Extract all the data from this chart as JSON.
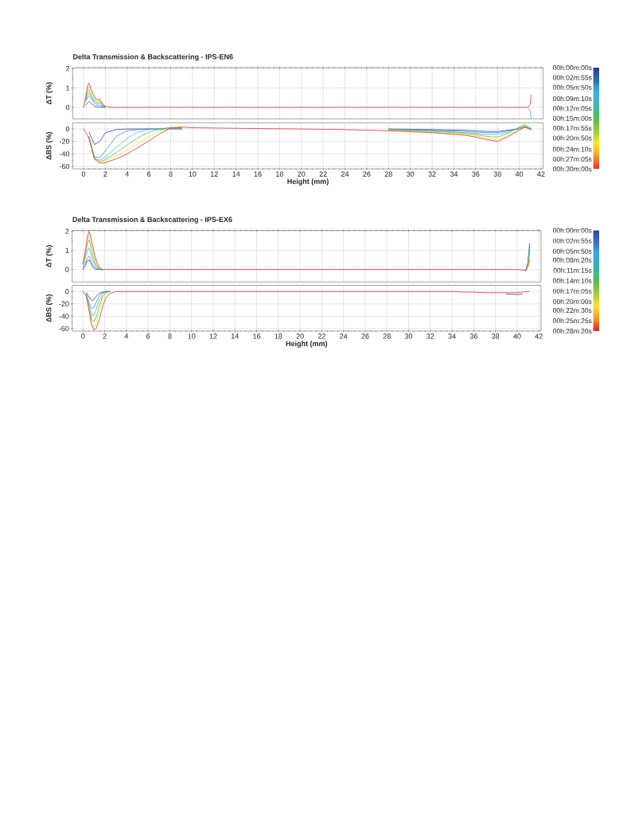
{
  "chart_data": [
    {
      "type": "line",
      "title": "Delta Transmission & Backscattering - IPS-EN6",
      "ylabel": "ΔT (%)",
      "x": [
        0,
        0.2,
        0.4,
        0.5,
        0.7,
        1.0,
        1.3,
        1.5,
        1.7,
        2.0,
        2.5,
        10,
        20,
        30,
        40,
        40.8,
        41.0,
        41.1
      ],
      "series": [
        {
          "color": "#2b3a96",
          "values": [
            null,
            0.1,
            0.25,
            0.3,
            0.2,
            0.06,
            0,
            0,
            0,
            0,
            null,
            null,
            null,
            null,
            null,
            null,
            null,
            null
          ]
        },
        {
          "color": "#2f86cc",
          "values": [
            null,
            0.3,
            0.55,
            0.6,
            0.45,
            0.2,
            0.08,
            0.1,
            0.05,
            0,
            null,
            null,
            null,
            null,
            null,
            null,
            null,
            null
          ]
        },
        {
          "color": "#35b6c8",
          "values": [
            null,
            0.4,
            0.7,
            0.75,
            0.55,
            0.3,
            0.15,
            0.2,
            0.1,
            0.02,
            null,
            null,
            null,
            null,
            null,
            0,
            -0.2,
            -0.6
          ]
        },
        {
          "color": "#4db748",
          "values": [
            null,
            0.45,
            0.85,
            0.9,
            0.65,
            0.38,
            0.22,
            0.28,
            0.14,
            0.03,
            null,
            null,
            null,
            null,
            null,
            null,
            null,
            null
          ]
        },
        {
          "color": "#f2e21a",
          "values": [
            null,
            0.5,
            1.0,
            1.08,
            0.8,
            0.47,
            0.3,
            0.36,
            0.18,
            0.04,
            null,
            null,
            null,
            null,
            null,
            null,
            null,
            null
          ]
        },
        {
          "color": "#e3242b",
          "values": [
            0,
            0.55,
            1.15,
            1.25,
            0.92,
            0.55,
            0.35,
            0.42,
            0.2,
            0.05,
            0,
            0,
            0,
            0,
            0,
            0,
            0.15,
            0.63
          ]
        }
      ],
      "xlim": [
        -1,
        42.2
      ],
      "xticks": [
        0,
        2,
        4,
        6,
        8,
        10,
        12,
        14,
        16,
        18,
        20,
        22,
        24,
        26,
        28,
        30,
        32,
        34,
        36,
        38,
        40,
        42
      ],
      "ylim": [
        -0.6,
        2.05
      ],
      "yticks": [
        0,
        1,
        2
      ],
      "grid": true,
      "tick_labels": "y",
      "line_style": "solid",
      "clim": [
        0,
        1800
      ],
      "cticks": [
        {
          "value": 0,
          "label": "00h:00m:00s"
        },
        {
          "value": 175,
          "label": "00h:02m:55s"
        },
        {
          "value": 350,
          "label": "00h:05m:50s"
        },
        {
          "value": 550,
          "label": "00h:09m:10s"
        },
        {
          "value": 725,
          "label": "00h:12m:05s"
        },
        {
          "value": 900,
          "label": "00h:15m:00s"
        },
        {
          "value": 1075,
          "label": "00h:17m:55s"
        },
        {
          "value": 1250,
          "label": "00h:20m:50s"
        },
        {
          "value": 1450,
          "label": "00h:24m:10s"
        },
        {
          "value": 1625,
          "label": "00h:27m:05s"
        },
        {
          "value": 1800,
          "label": "00h:30m:00s"
        }
      ]
    },
    {
      "type": "line",
      "xlabel": "Height (mm)",
      "ylabel": "ΔBS (%)",
      "x": [
        0,
        0.5,
        1,
        1.5,
        2,
        3,
        4,
        5,
        6,
        7,
        8,
        9,
        10,
        14,
        20,
        24,
        28,
        32,
        35,
        36,
        37,
        38,
        39,
        40,
        40.5,
        41.1
      ],
      "series": [
        {
          "color": "#2b3a96",
          "values": [
            null,
            -5,
            -25,
            -20,
            -6,
            -1,
            0,
            0,
            0,
            0,
            0,
            0,
            null,
            null,
            null,
            null,
            0,
            -1,
            -2,
            -3,
            -4,
            -4,
            -2,
            0,
            3,
            0
          ]
        },
        {
          "color": "#2f86cc",
          "values": [
            null,
            -12,
            -45,
            -46,
            -35,
            -12,
            -3,
            -1,
            0,
            0,
            1,
            1,
            null,
            null,
            null,
            null,
            -1,
            -2,
            -4,
            -5,
            -6,
            -6,
            -3,
            1,
            4,
            0
          ]
        },
        {
          "color": "#35b6c8",
          "values": [
            null,
            -13,
            -47,
            -50,
            -45,
            -30,
            -15,
            -5,
            -1,
            0,
            2,
            2,
            null,
            null,
            null,
            null,
            -1,
            -3,
            -6,
            -7,
            -9,
            -9,
            -5,
            2,
            5,
            0
          ]
        },
        {
          "color": "#4db748",
          "values": [
            null,
            -14,
            -48,
            -52,
            -49,
            -38,
            -26,
            -14,
            -5,
            0,
            2,
            2,
            null,
            null,
            null,
            null,
            -2,
            -4,
            -7,
            -9,
            -12,
            -13,
            -7,
            3,
            7,
            1
          ]
        },
        {
          "color": "#f2e21a",
          "values": [
            null,
            -14,
            -48,
            -53,
            -51,
            -43,
            -34,
            -23,
            -12,
            -3,
            2,
            3,
            null,
            null,
            null,
            null,
            -2,
            -5,
            -9,
            -11,
            -15,
            -17,
            -10,
            0,
            5,
            0
          ]
        },
        {
          "color": "#e3242b",
          "values": [
            0,
            -15,
            -48,
            -55,
            -54,
            -48,
            -40,
            -30,
            -19,
            -8,
            2,
            3,
            2,
            1,
            0,
            -1,
            -3,
            -6,
            -10,
            -13,
            -17,
            -20,
            -12,
            -2,
            3,
            -1
          ]
        }
      ],
      "xlim": [
        -1,
        42.2
      ],
      "xticks": [
        0,
        2,
        4,
        6,
        8,
        10,
        12,
        14,
        16,
        18,
        20,
        22,
        24,
        26,
        28,
        30,
        32,
        34,
        36,
        38,
        40,
        42
      ],
      "ylim": [
        -64,
        10
      ],
      "yticks": [
        -60,
        -40,
        -20,
        0
      ],
      "grid": true,
      "line_style": "solid"
    },
    {
      "type": "line",
      "title": "Delta Transmission & Backscattering - IPS-EX6",
      "ylabel": "ΔT (%)",
      "x": [
        0,
        0.2,
        0.4,
        0.55,
        0.7,
        0.9,
        1.1,
        1.3,
        1.5,
        1.8,
        2.5,
        10,
        20,
        30,
        40,
        40.8,
        41.0,
        41.15
      ],
      "series": [
        {
          "color": "#2b3a96",
          "values": [
            0,
            0.2,
            0.45,
            0.5,
            0.35,
            0.12,
            0.03,
            0,
            0,
            0,
            null,
            null,
            null,
            null,
            null,
            -0.05,
            0.4,
            1.35
          ]
        },
        {
          "color": "#2f86cc",
          "values": [
            0.1,
            0.35,
            0.6,
            0.7,
            0.5,
            0.25,
            0.1,
            0.03,
            0,
            0,
            null,
            null,
            null,
            null,
            null,
            -0.05,
            0.35,
            1.25
          ]
        },
        {
          "color": "#35b6c8",
          "values": [
            0.25,
            0.6,
            1.0,
            1.15,
            0.9,
            0.5,
            0.22,
            0.08,
            0.02,
            0,
            null,
            null,
            null,
            null,
            null,
            -0.05,
            0.3,
            1.1
          ]
        },
        {
          "color": "#4db748",
          "values": [
            0.3,
            0.75,
            1.35,
            1.55,
            1.25,
            0.75,
            0.35,
            0.15,
            0.05,
            0,
            null,
            null,
            null,
            null,
            null,
            -0.05,
            0.25,
            0.9
          ]
        },
        {
          "color": "#f2e21a",
          "values": [
            0.3,
            0.85,
            1.55,
            1.8,
            1.5,
            0.95,
            0.5,
            0.22,
            0.08,
            0,
            null,
            null,
            null,
            null,
            null,
            -0.05,
            0.2,
            0.7
          ]
        },
        {
          "color": "#e3242b",
          "values": [
            0.3,
            0.9,
            1.7,
            2.0,
            1.75,
            1.2,
            0.7,
            0.35,
            0.12,
            0,
            0,
            0,
            0,
            0,
            0,
            -0.05,
            0.15,
            0.5
          ]
        }
      ],
      "xlim": [
        -1,
        42.2
      ],
      "xticks": [
        0,
        2,
        4,
        6,
        8,
        10,
        12,
        14,
        16,
        18,
        20,
        22,
        24,
        26,
        28,
        30,
        32,
        34,
        36,
        38,
        40,
        42
      ],
      "ylim": [
        -0.65,
        2.05
      ],
      "yticks": [
        0,
        1,
        2
      ],
      "grid": true,
      "tick_labels": "y",
      "line_style": "solid",
      "clim": [
        0,
        1700
      ],
      "cticks": [
        {
          "value": 0,
          "label": "00h:00m:00s"
        },
        {
          "value": 175,
          "label": "00h:02m:55s"
        },
        {
          "value": 350,
          "label": "00h:05m:50s"
        },
        {
          "value": 500,
          "label": "00h:08m:20s"
        },
        {
          "value": 675,
          "label": "00h:11m:15s"
        },
        {
          "value": 850,
          "label": "00h:14m:10s"
        },
        {
          "value": 1025,
          "label": "00h:17m:05s"
        },
        {
          "value": 1200,
          "label": "00h:20m:00s"
        },
        {
          "value": 1350,
          "label": "00h:22m:30s"
        },
        {
          "value": 1525,
          "label": "00h:25m:25s"
        },
        {
          "value": 1700,
          "label": "00h:28m:20s"
        }
      ]
    },
    {
      "type": "line",
      "xlabel": "Height (mm)",
      "ylabel": "ΔBS (%)",
      "x": [
        0,
        0.3,
        0.6,
        0.8,
        1.0,
        1.2,
        1.5,
        1.8,
        2.1,
        2.5,
        3.0,
        4,
        10,
        20,
        30,
        34,
        35,
        36,
        37,
        38,
        39,
        40,
        40.5,
        41.1
      ],
      "series": [
        {
          "color": "#2b3a96",
          "values": [
            null,
            -2,
            -10,
            -15,
            -13,
            -8,
            -3,
            -1,
            0,
            0,
            null,
            null,
            null,
            null,
            null,
            null,
            null,
            null,
            null,
            null,
            -4,
            -5,
            -4,
            null
          ]
        },
        {
          "color": "#2f86cc",
          "values": [
            null,
            -4,
            -20,
            -28,
            -26,
            -18,
            -7,
            -2,
            0,
            0,
            null,
            null,
            null,
            null,
            null,
            null,
            null,
            null,
            null,
            null,
            null,
            null,
            null,
            null
          ]
        },
        {
          "color": "#35b6c8",
          "values": [
            null,
            -5,
            -26,
            -38,
            -38,
            -30,
            -14,
            -4,
            -1,
            0,
            null,
            null,
            null,
            null,
            null,
            null,
            null,
            null,
            null,
            null,
            null,
            null,
            null,
            null
          ]
        },
        {
          "color": "#4db748",
          "values": [
            null,
            -6,
            -30,
            -46,
            -49,
            -42,
            -24,
            -8,
            -2,
            0,
            null,
            null,
            null,
            null,
            null,
            null,
            null,
            null,
            null,
            null,
            null,
            null,
            null,
            null
          ]
        },
        {
          "color": "#f2e21a",
          "values": [
            null,
            -7,
            -33,
            -52,
            -57,
            -52,
            -33,
            -14,
            -4,
            -1,
            null,
            null,
            null,
            null,
            null,
            null,
            null,
            null,
            null,
            null,
            null,
            null,
            null,
            null
          ]
        },
        {
          "color": "#e3242b",
          "values": [
            0,
            -8,
            -35,
            -55,
            -62,
            -60,
            -45,
            -25,
            -10,
            -3,
            0,
            0,
            0,
            0,
            0,
            0,
            -1,
            -1,
            -2,
            -2,
            -2,
            -2,
            -1,
            0
          ]
        }
      ],
      "xlim": [
        -1,
        42.2
      ],
      "xticks": [
        0,
        2,
        4,
        6,
        8,
        10,
        12,
        14,
        16,
        18,
        20,
        22,
        24,
        26,
        28,
        30,
        32,
        34,
        36,
        38,
        40,
        42
      ],
      "ylim": [
        -64,
        10
      ],
      "yticks": [
        -60,
        -40,
        -20,
        0
      ],
      "grid": true,
      "line_style": "solid"
    }
  ]
}
